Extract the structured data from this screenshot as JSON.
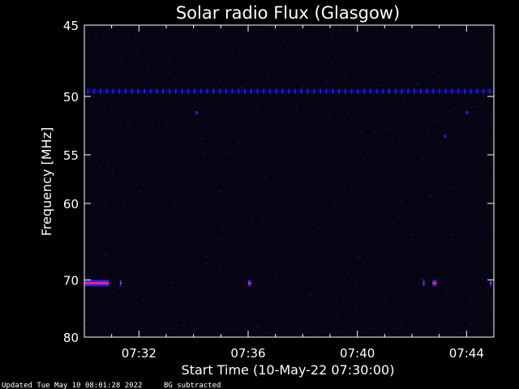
{
  "chart_data": {
    "type": "heatmap",
    "title": "Solar radio Flux (Glasgow)",
    "xlabel": "Start Time (10-May-22 07:30:00)",
    "ylabel": "Frequency [MHz]",
    "x_ticks": [
      "07:32",
      "07:36",
      "07:40",
      "07:44"
    ],
    "x_tick_minutes": [
      2,
      6,
      10,
      14
    ],
    "x_range_minutes": [
      0,
      15
    ],
    "y_ticks": [
      45,
      50,
      55,
      60,
      70,
      80
    ],
    "y_range": [
      45,
      80
    ],
    "y_scale": "reciprocal",
    "grid": false,
    "features": {
      "band_mhz": 49.6,
      "dots": [
        {
          "minute": 4.1,
          "mhz": 51.3
        },
        {
          "minute": 14.0,
          "mhz": 51.3
        },
        {
          "minute": 13.2,
          "mhz": 53.3
        }
      ],
      "bursts": [
        {
          "minute_start": 0.0,
          "minute_end": 0.9,
          "mhz": 70.5
        },
        {
          "minute_start": 1.3,
          "minute_end": 1.35,
          "mhz": 70.5
        },
        {
          "minute_start": 6.0,
          "minute_end": 6.1,
          "mhz": 70.5
        },
        {
          "minute_start": 12.4,
          "minute_end": 12.45,
          "mhz": 70.5
        },
        {
          "minute_start": 12.75,
          "minute_end": 12.9,
          "mhz": 70.5
        },
        {
          "minute_start": 14.85,
          "minute_end": 14.9,
          "mhz": 70.5
        }
      ]
    },
    "colors": {
      "background": "#000000",
      "plot_bg": "#050514",
      "band": "#1a1aff",
      "burst_core": "#ff2060",
      "burst_edge": "#2020ff",
      "text": "#ffffff"
    }
  },
  "footer": {
    "updated": "Updated Tue May 10 08:01:28 2022",
    "note": "BG subtracted"
  }
}
